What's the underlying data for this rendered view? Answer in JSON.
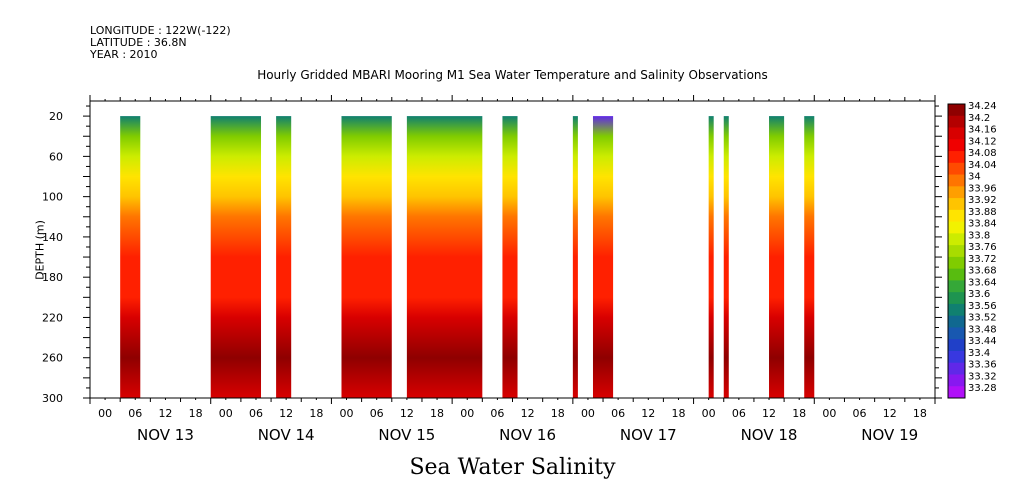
{
  "header": {
    "longitude": "LONGITUDE : 122W(-122)",
    "latitude": "LATITUDE : 36.8N",
    "year": "YEAR : 2010"
  },
  "chart_data": {
    "type": "heatmap",
    "title": "Hourly Gridded MBARI Mooring M1 Sea Water Temperature and Salinity Observations",
    "variable_title": "Sea Water Salinity",
    "ylabel": "DEPTH (m)",
    "y_axis": {
      "lim": [
        300,
        5
      ],
      "inverted": true,
      "ticks": [
        20,
        60,
        100,
        140,
        180,
        220,
        260,
        300
      ]
    },
    "x_axis": {
      "lim_hours": [
        0,
        168
      ],
      "hour_ticks": [
        "00",
        "06",
        "12",
        "18"
      ],
      "days": [
        "NOV 13",
        "NOV 14",
        "NOV 15",
        "NOV 16",
        "NOV 17",
        "NOV 18",
        "NOV 19"
      ]
    },
    "colorbar": {
      "levels": [
        "34.24",
        "34.2",
        "34.16",
        "34.12",
        "34.08",
        "34.04",
        "34",
        "33.96",
        "33.92",
        "33.88",
        "33.84",
        "33.8",
        "33.76",
        "33.72",
        "33.68",
        "33.64",
        "33.6",
        "33.56",
        "33.52",
        "33.48",
        "33.44",
        "33.4",
        "33.36",
        "33.32",
        "33.28"
      ],
      "colors": [
        "#8f0000",
        "#b40000",
        "#d80000",
        "#f00000",
        "#ff2000",
        "#ff4b00",
        "#ff7500",
        "#ff9f00",
        "#ffc400",
        "#ffe400",
        "#f2f200",
        "#ccec00",
        "#a8dc00",
        "#80cc00",
        "#58bc10",
        "#35a838",
        "#1e9450",
        "#108070",
        "#106890",
        "#1858b0",
        "#2040c8",
        "#3838e0",
        "#6028e8",
        "#8818f0",
        "#b010f8"
      ]
    },
    "profile": [
      {
        "depth": 20,
        "salinity": 33.56
      },
      {
        "depth": 40,
        "salinity": 33.7
      },
      {
        "depth": 60,
        "salinity": 33.8
      },
      {
        "depth": 80,
        "salinity": 33.86
      },
      {
        "depth": 100,
        "salinity": 33.9
      },
      {
        "depth": 120,
        "salinity": 33.98
      },
      {
        "depth": 140,
        "salinity": 34.04
      },
      {
        "depth": 160,
        "salinity": 34.07
      },
      {
        "depth": 180,
        "salinity": 34.07
      },
      {
        "depth": 200,
        "salinity": 34.08
      },
      {
        "depth": 220,
        "salinity": 34.14
      },
      {
        "depth": 240,
        "salinity": 34.18
      },
      {
        "depth": 260,
        "salinity": 34.22
      },
      {
        "depth": 280,
        "salinity": 34.18
      },
      {
        "depth": 300,
        "salinity": 34.16
      }
    ],
    "series": [
      {
        "start_hour": 6,
        "end_hour": 10
      },
      {
        "start_hour": 24,
        "end_hour": 34
      },
      {
        "start_hour": 37,
        "end_hour": 40
      },
      {
        "start_hour": 50,
        "end_hour": 60
      },
      {
        "start_hour": 63,
        "end_hour": 78
      },
      {
        "start_hour": 82,
        "end_hour": 85
      },
      {
        "start_hour": 96,
        "end_hour": 97
      },
      {
        "start_hour": 100,
        "end_hour": 104,
        "surface_salinity": 33.36
      },
      {
        "start_hour": 123,
        "end_hour": 124
      },
      {
        "start_hour": 126,
        "end_hour": 127
      },
      {
        "start_hour": 135,
        "end_hour": 138
      },
      {
        "start_hour": 142,
        "end_hour": 144
      }
    ]
  }
}
